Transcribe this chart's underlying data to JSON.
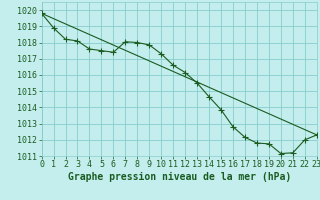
{
  "title": "Graphe pression niveau de la mer (hPa)",
  "bg_color": "#c4eeee",
  "grid_color": "#88cccc",
  "line_color": "#1a5c20",
  "xlim": [
    0,
    23
  ],
  "ylim": [
    1011,
    1020.5
  ],
  "xticks": [
    0,
    1,
    2,
    3,
    4,
    5,
    6,
    7,
    8,
    9,
    10,
    11,
    12,
    13,
    14,
    15,
    16,
    17,
    18,
    19,
    20,
    21,
    22,
    23
  ],
  "yticks": [
    1011,
    1012,
    1013,
    1014,
    1015,
    1016,
    1017,
    1018,
    1019,
    1020
  ],
  "hours": [
    0,
    1,
    2,
    3,
    4,
    5,
    6,
    7,
    8,
    9,
    10,
    11,
    12,
    13,
    14,
    15,
    16,
    17,
    18,
    19,
    20,
    21,
    22,
    23
  ],
  "line1": [
    1019.8,
    1018.9,
    1018.2,
    1018.1,
    1017.6,
    1017.5,
    1017.4,
    1018.05,
    1018.0,
    1017.85,
    1017.3,
    1016.6,
    1016.15,
    1015.5,
    1014.65,
    1013.85,
    1012.8,
    1012.15,
    1011.8,
    1011.75,
    1011.15,
    1011.2,
    1012.0,
    1012.3
  ],
  "trend_x": [
    0,
    23
  ],
  "trend_y": [
    1019.8,
    1012.3
  ],
  "tick_fontsize": 6,
  "label_fontsize": 7
}
